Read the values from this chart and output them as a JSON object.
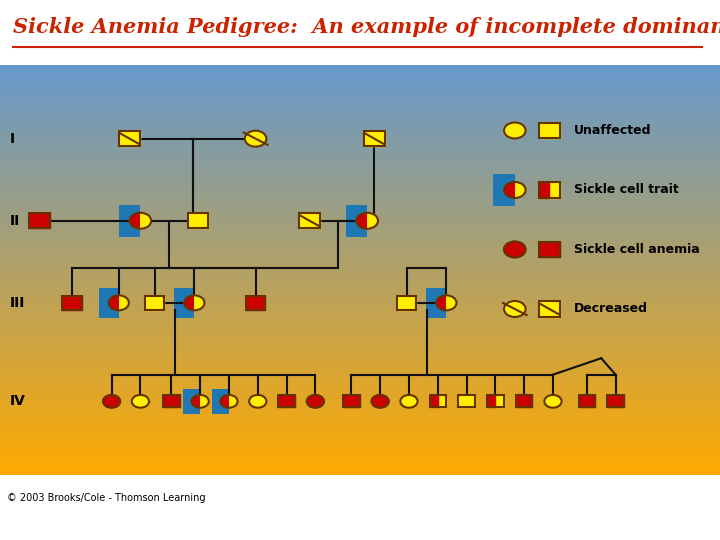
{
  "title": "Sickle Anemia Pedigree:  An example of incomplete dominance",
  "title_color": "#cc2200",
  "title_fontsize": 15,
  "bg_top_color": "#6699cc",
  "bg_bottom_color": "#ffaa00",
  "legend_labels": [
    "Unaffected",
    "Sickle cell trait",
    "Sickle cell anemia",
    "Decreased"
  ],
  "copyright": "© 2003 Brooks/Cole - Thomson Learning",
  "colors": {
    "yellow": "#ffee00",
    "red": "#cc0000",
    "outline": "#663300",
    "line": "#111111"
  },
  "row_y": {
    "I": 0.82,
    "II": 0.62,
    "III": 0.42,
    "IV": 0.18
  }
}
